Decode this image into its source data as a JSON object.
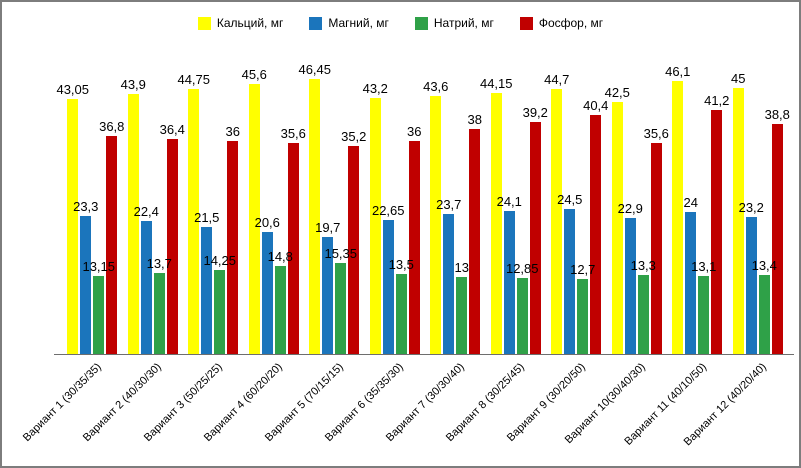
{
  "frame": {
    "border_color": "#7d7d7d",
    "background": "#ffffff"
  },
  "chart_data": {
    "type": "bar",
    "title": "",
    "legend_position": "top",
    "grid": false,
    "data_labels": true,
    "decimal_separator": ",",
    "ylim": [
      0,
      50
    ],
    "xlabel": "",
    "ylabel": "",
    "categories": [
      "Вариант 1 (30/35/35)",
      "Вариант 2 (40/30/30)",
      "Вариант 3 (50/25/25)",
      "Вариант 4 (60/20/20)",
      "Вариант 5 (70/15/15)",
      "Вариант 6 (35/35/30)",
      "Вариант 7 (30/30/40)",
      "Вариант 8 (30/25/45)",
      "Вариант 9 (30/20/50)",
      "Вариант 10(30/40/30)",
      "Вариант 11 (40/10/50)",
      "Вариант 12 (40/20/40)"
    ],
    "series": [
      {
        "name": "Кальций, мг",
        "color": "#FFFF00",
        "values": [
          43.05,
          43.9,
          44.75,
          45.6,
          46.45,
          43.2,
          43.6,
          44.15,
          44.7,
          42.5,
          46.1,
          45
        ],
        "labels": [
          "43,05",
          "43,9",
          "44,75",
          "45,6",
          "46,45",
          "43,2",
          "43,6",
          "44,15",
          "44,7",
          "42,5",
          "46,1",
          "45"
        ]
      },
      {
        "name": "Магний, мг",
        "color": "#1B75BC",
        "values": [
          23.3,
          22.4,
          21.5,
          20.6,
          19.7,
          22.65,
          23.7,
          24.1,
          24.5,
          22.9,
          24,
          23.2
        ],
        "labels": [
          "23,3",
          "22,4",
          "21,5",
          "20,6",
          "19,7",
          "22,65",
          "23,7",
          "24,1",
          "24,5",
          "22,9",
          "24",
          "23,2"
        ]
      },
      {
        "name": "Натрий, мг",
        "color": "#2FA148",
        "values": [
          13.15,
          13.7,
          14.25,
          14.8,
          15.35,
          13.5,
          13,
          12.85,
          12.7,
          13.3,
          13.1,
          13.4
        ],
        "labels": [
          "13,15",
          "13,7",
          "14,25",
          "14,8",
          "15,35",
          "13,5",
          "13",
          "12,85",
          "12,7",
          "13,3",
          "13,1",
          "13,4"
        ]
      },
      {
        "name": "Фосфор, мг",
        "color": "#C00000",
        "values": [
          36.8,
          36.4,
          36,
          35.6,
          35.2,
          36,
          38,
          39.2,
          40.4,
          35.6,
          41.2,
          38.8
        ],
        "labels": [
          "36,8",
          "36,4",
          "36",
          "35,6",
          "35,2",
          "36",
          "38",
          "39,2",
          "40,4",
          "35,6",
          "41,2",
          "38,8"
        ]
      }
    ]
  }
}
